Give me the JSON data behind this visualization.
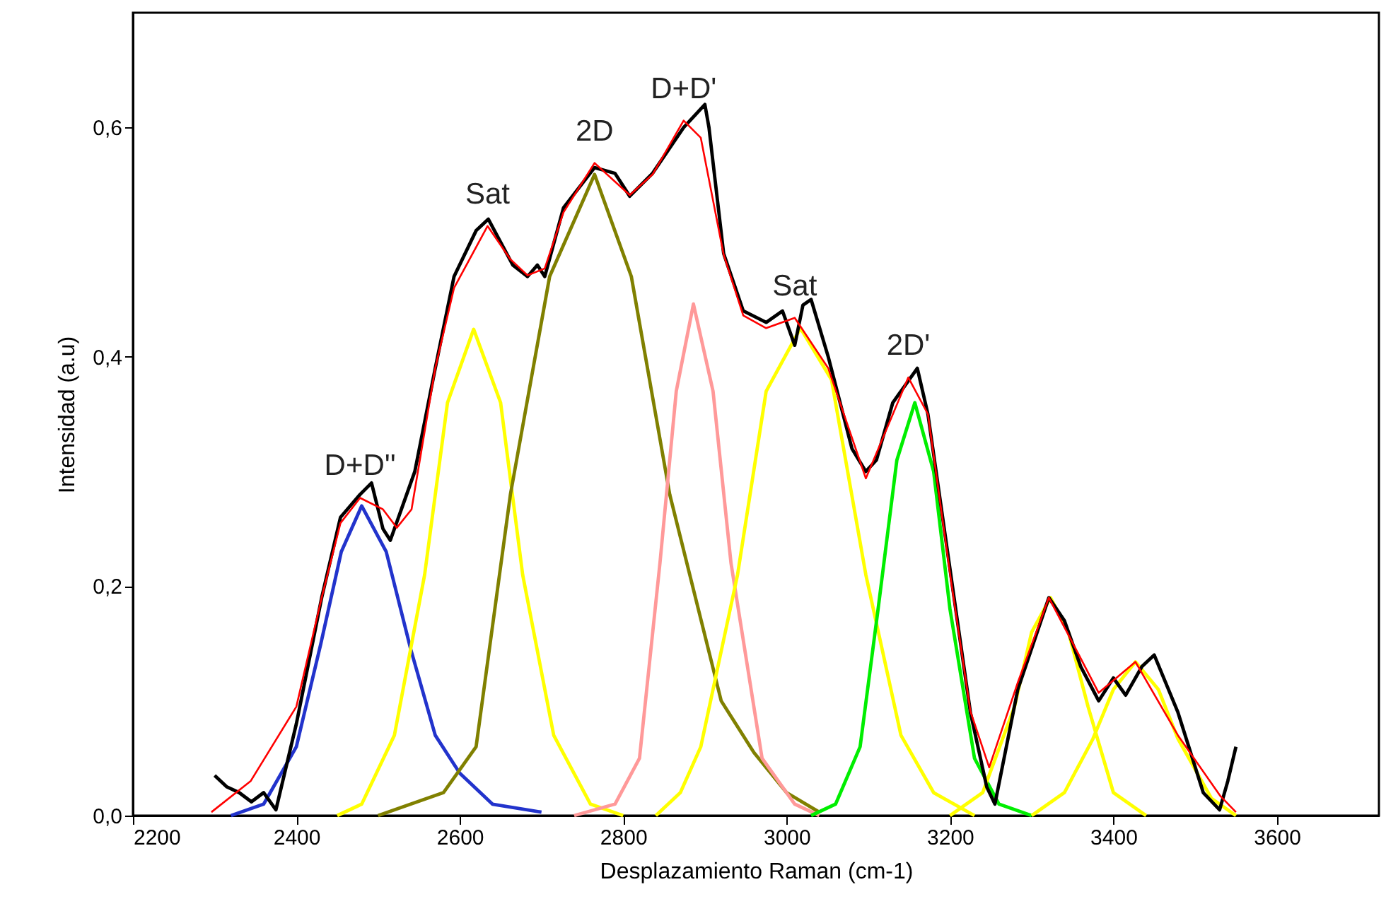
{
  "chart_data": {
    "type": "line",
    "xlabel": "Desplazamiento Raman (cm-1)",
    "ylabel": "Intensidad (a.u)",
    "xlim": [
      2200,
      3725
    ],
    "xticks": [
      2200,
      2400,
      2600,
      2800,
      3000,
      3200,
      3400,
      3600
    ],
    "ylim": [
      0,
      0.7
    ],
    "yticks": [
      {
        "value": 0,
        "label": "0,0"
      },
      {
        "value": 0.2,
        "label": "0,2"
      },
      {
        "value": 0.4,
        "label": "0,4"
      },
      {
        "value": 0.6,
        "label": "0,6"
      }
    ],
    "grid": false,
    "series": [
      {
        "color": "#2233cc",
        "x": [
          2320,
          2360,
          2400,
          2430,
          2455,
          2480,
          2510,
          2540,
          2570,
          2600,
          2640,
          2700
        ],
        "values": [
          0,
          0.01,
          0.06,
          0.15,
          0.23,
          0.27,
          0.23,
          0.145,
          0.07,
          0.037,
          0.01,
          0.003
        ]
      },
      {
        "color": "#ffff00",
        "x": [
          2450,
          2480,
          2520,
          2557,
          2585,
          2617,
          2650,
          2677,
          2715,
          2760,
          2800
        ],
        "values": [
          0,
          0.01,
          0.07,
          0.21,
          0.36,
          0.424,
          0.36,
          0.21,
          0.07,
          0.01,
          0
        ]
      },
      {
        "color": "#808000",
        "x": [
          2500,
          2580,
          2620,
          2662,
          2710,
          2765,
          2810,
          2857,
          2920,
          2960,
          3000,
          3040
        ],
        "values": [
          0,
          0.02,
          0.06,
          0.28,
          0.47,
          0.559,
          0.47,
          0.28,
          0.1,
          0.055,
          0.02,
          0.003
        ]
      },
      {
        "color": "#ff9999",
        "x": [
          2740,
          2790,
          2820,
          2845,
          2865,
          2886,
          2910,
          2932,
          2970,
          3010,
          3040
        ],
        "values": [
          0,
          0.01,
          0.05,
          0.22,
          0.37,
          0.446,
          0.37,
          0.22,
          0.05,
          0.01,
          0
        ]
      },
      {
        "color": "#ffff00",
        "x": [
          2840,
          2870,
          2895,
          2940,
          2975,
          3017,
          3055,
          3097,
          3140,
          3180,
          3230
        ],
        "values": [
          0,
          0.02,
          0.06,
          0.21,
          0.37,
          0.425,
          0.38,
          0.21,
          0.07,
          0.02,
          0
        ]
      },
      {
        "color": "#00ee00",
        "x": [
          3030,
          3060,
          3090,
          3112,
          3135,
          3157,
          3180,
          3200,
          3230,
          3260,
          3300
        ],
        "values": [
          0,
          0.01,
          0.06,
          0.18,
          0.31,
          0.36,
          0.3,
          0.18,
          0.05,
          0.01,
          0
        ]
      },
      {
        "color": "#ffff00",
        "x": [
          3200,
          3240,
          3279,
          3300,
          3323,
          3345,
          3369,
          3400,
          3440
        ],
        "values": [
          0,
          0.02,
          0.095,
          0.16,
          0.19,
          0.16,
          0.095,
          0.02,
          0
        ]
      },
      {
        "color": "#ffff00",
        "x": [
          3300,
          3340,
          3375,
          3400,
          3427,
          3455,
          3479,
          3520,
          3550
        ],
        "values": [
          0,
          0.02,
          0.067,
          0.11,
          0.134,
          0.11,
          0.067,
          0.015,
          0
        ]
      },
      {
        "color": "#000000",
        "x": [
          2300,
          2315,
          2330,
          2345,
          2360,
          2375,
          2400,
          2431,
          2454,
          2478,
          2492,
          2506,
          2515,
          2530,
          2545,
          2570,
          2593,
          2620,
          2635,
          2650,
          2665,
          2683,
          2695,
          2704,
          2727,
          2765,
          2790,
          2808,
          2836,
          2874,
          2900,
          2905,
          2923,
          2947,
          2975,
          2995,
          3010,
          3020,
          3030,
          3051,
          3080,
          3097,
          3110,
          3130,
          3160,
          3173,
          3201,
          3225,
          3245,
          3255,
          3283,
          3321,
          3340,
          3360,
          3382,
          3400,
          3415,
          3435,
          3450,
          3479,
          3510,
          3530,
          3540,
          3550
        ],
        "values": [
          0.035,
          0.025,
          0.02,
          0.012,
          0.02,
          0.005,
          0.08,
          0.19,
          0.26,
          0.28,
          0.29,
          0.25,
          0.24,
          0.27,
          0.3,
          0.39,
          0.47,
          0.51,
          0.52,
          0.5,
          0.48,
          0.47,
          0.48,
          0.47,
          0.53,
          0.565,
          0.56,
          0.54,
          0.56,
          0.6,
          0.62,
          0.6,
          0.49,
          0.44,
          0.43,
          0.44,
          0.41,
          0.445,
          0.45,
          0.4,
          0.32,
          0.3,
          0.31,
          0.36,
          0.39,
          0.35,
          0.21,
          0.09,
          0.025,
          0.01,
          0.11,
          0.19,
          0.17,
          0.13,
          0.1,
          0.12,
          0.105,
          0.13,
          0.14,
          0.09,
          0.02,
          0.005,
          0.03,
          0.06
        ]
      },
      {
        "color": "#ff0000",
        "x": [
          2296,
          2344,
          2400,
          2431,
          2454,
          2478,
          2506,
          2523,
          2541,
          2570,
          2593,
          2634,
          2662,
          2683,
          2704,
          2727,
          2765,
          2808,
          2836,
          2874,
          2895,
          2923,
          2947,
          2975,
          3010,
          3051,
          3097,
          3149,
          3173,
          3201,
          3225,
          3248,
          3283,
          3321,
          3352,
          3382,
          3427,
          3479,
          3531,
          3550
        ],
        "values": [
          0.003,
          0.03,
          0.095,
          0.19,
          0.255,
          0.277,
          0.267,
          0.251,
          0.267,
          0.39,
          0.46,
          0.514,
          0.485,
          0.471,
          0.477,
          0.526,
          0.569,
          0.541,
          0.559,
          0.606,
          0.591,
          0.489,
          0.436,
          0.425,
          0.434,
          0.39,
          0.294,
          0.382,
          0.35,
          0.206,
          0.091,
          0.042,
          0.116,
          0.19,
          0.148,
          0.107,
          0.134,
          0.07,
          0.017,
          0.003
        ]
      }
    ],
    "annotations": [
      {
        "text": "D+D''",
        "x": 2478,
        "y": 0.277
      },
      {
        "text": "Sat",
        "x": 2634,
        "y": 0.514
      },
      {
        "text": "2D",
        "x": 2765,
        "y": 0.569
      },
      {
        "text": "D+D'",
        "x": 2874,
        "y": 0.606
      },
      {
        "text": "Sat",
        "x": 3010,
        "y": 0.434
      },
      {
        "text": "2D'",
        "x": 3149,
        "y": 0.382
      }
    ]
  }
}
